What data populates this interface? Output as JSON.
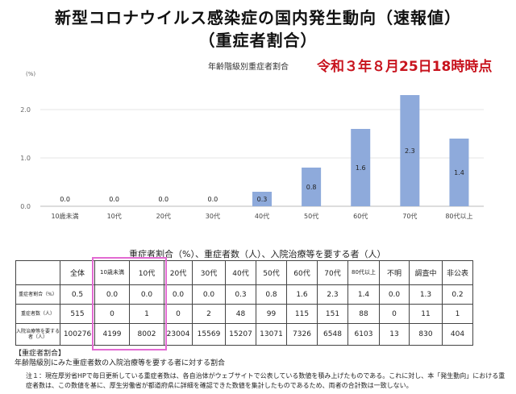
{
  "title_line1": "新型コロナウイルス感染症の国内発生動向（速報値）",
  "title_line2": "（重症者割合）",
  "chart_subtitle": "年齢階級別重症者割合",
  "date": "令和３年８月25日18時時点",
  "chart_data": {
    "type": "bar",
    "title": "年齢階級別重症者割合",
    "ylabel": "(%)",
    "xlabel": "",
    "ylim": [
      0,
      2.5
    ],
    "yticks": [
      "0.0",
      "1.0",
      "2.0"
    ],
    "categories": [
      "10歳未満",
      "10代",
      "20代",
      "30代",
      "40代",
      "50代",
      "60代",
      "70代",
      "80代以上"
    ],
    "values": [
      0.0,
      0.0,
      0.0,
      0.0,
      0.3,
      0.8,
      1.6,
      2.3,
      1.4
    ],
    "value_labels": [
      "0.0",
      "0.0",
      "0.0",
      "0.0",
      "0.3",
      "0.8",
      "1.6",
      "2.3",
      "1.4"
    ],
    "bar_color": "#8eaadb"
  },
  "table": {
    "title": "重症者割合（%）、重症者数（人）、入院治療等を要する者（人）",
    "headers": [
      "全体",
      "10歳未満",
      "10代",
      "20代",
      "30代",
      "40代",
      "50代",
      "60代",
      "70代",
      "80代以上",
      "不明",
      "調査中",
      "非公表"
    ],
    "rows": [
      {
        "label": "重症者割合（%）",
        "values": [
          "0.5",
          "0.0",
          "0.0",
          "0.0",
          "0.0",
          "0.3",
          "0.8",
          "1.6",
          "2.3",
          "1.4",
          "0.0",
          "1.3",
          "0.2"
        ]
      },
      {
        "label": "重症者数（人）",
        "values": [
          "515",
          "0",
          "1",
          "0",
          "2",
          "48",
          "99",
          "115",
          "151",
          "88",
          "0",
          "11",
          "1"
        ]
      },
      {
        "label": "入院治療等を要する者（人）",
        "values": [
          "100276",
          "4199",
          "8002",
          "23004",
          "15569",
          "15207",
          "13071",
          "7326",
          "6548",
          "6103",
          "13",
          "830",
          "404"
        ]
      }
    ],
    "highlight_color": "#e26ad2"
  },
  "note_heading": "【重症者割合】",
  "note_body": "年齢階級別にみた重症者数の入院治療等を要する者に対する割合",
  "footnote": "注１：現在厚労省HPで毎日更新している重症者数は、各自治体がウェブサイトで公表している数値を積み上げたものである。これに対し、本「発生動向」における重症者数は、この数値を基に、厚生労働省が都道府県に詳細を確認できた数値を集計したものであるため、両者の合計数は一致しない。"
}
